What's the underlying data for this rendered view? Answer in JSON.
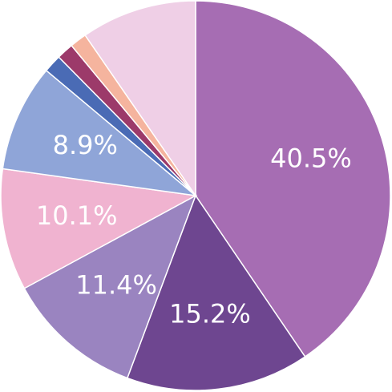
{
  "chart_data": {
    "type": "pie",
    "values": [
      40.5,
      15.2,
      11.4,
      10.1,
      8.9,
      1.5,
      1.4,
      1.4,
      9.6
    ],
    "value_labels": [
      "40.5%",
      "15.2%",
      "11.4%",
      "10.1%",
      "8.9%",
      null,
      null,
      null,
      null
    ],
    "colors": [
      "#a66db3",
      "#6e4690",
      "#9a84c0",
      "#f0b3d0",
      "#8fa5d8",
      "#4a6bb5",
      "#9c3a6a",
      "#f5b49e",
      "#efcfe6"
    ]
  }
}
